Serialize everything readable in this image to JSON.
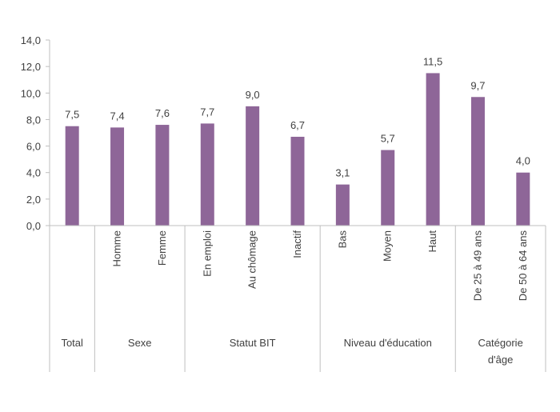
{
  "chart_data": {
    "type": "bar",
    "categories": [
      "",
      "Homme",
      "Femme",
      "En emploi",
      "Au chômage",
      "Inactif",
      "Bas",
      "Moyen",
      "Haut",
      "De 25 à 49 ans",
      "De 50 à 64 ans"
    ],
    "values": [
      7.5,
      7.4,
      7.6,
      7.7,
      9.0,
      6.7,
      3.1,
      5.7,
      11.5,
      9.7,
      4.0
    ],
    "value_labels": [
      "7,5",
      "7,4",
      "7,6",
      "7,7",
      "9,0",
      "6,7",
      "3,1",
      "5,7",
      "11,5",
      "9,7",
      "4,0"
    ],
    "groups": [
      {
        "label": [
          "Total"
        ],
        "start": 0,
        "end": 0
      },
      {
        "label": [
          "Sexe"
        ],
        "start": 1,
        "end": 2
      },
      {
        "label": [
          "Statut BIT"
        ],
        "start": 3,
        "end": 5
      },
      {
        "label": [
          "Niveau d'éducation"
        ],
        "start": 6,
        "end": 8
      },
      {
        "label": [
          "Catégorie",
          "d'âge"
        ],
        "start": 9,
        "end": 10
      }
    ],
    "y_ticks": [
      "0,0",
      "2,0",
      "4,0",
      "6,0",
      "8,0",
      "10,0",
      "12,0",
      "14,0"
    ],
    "ylim": [
      0,
      14
    ],
    "grid": false,
    "bar_color": "#8e6698",
    "axis_color": "#bfbfbf",
    "title": "",
    "xlabel": "",
    "ylabel": ""
  }
}
